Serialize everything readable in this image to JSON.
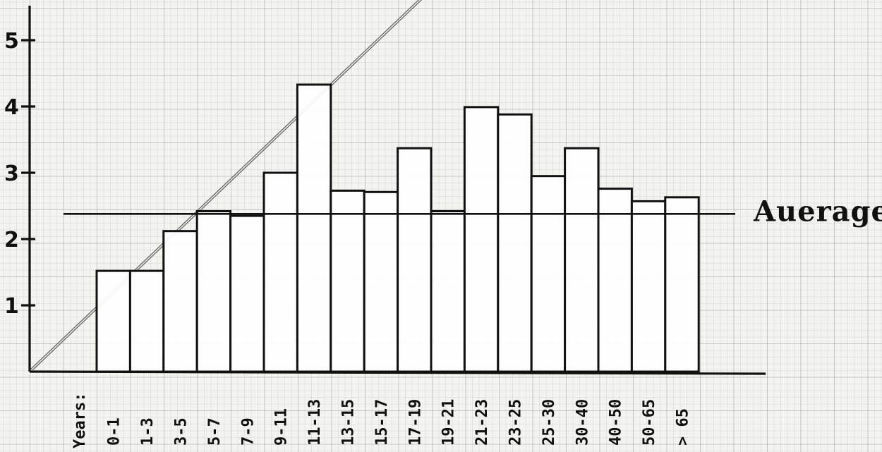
{
  "chart_data": {
    "type": "bar",
    "title": "",
    "xlabel": "Years:",
    "ylabel": "",
    "categories": [
      "0-1",
      "1-3",
      "3-5",
      "5-7",
      "7-9",
      "9-11",
      "11-13",
      "13-15",
      "15-17",
      "17-19",
      "19-21",
      "21-23",
      "23-25",
      "25-30",
      "30-40",
      "40-50",
      "50-65",
      "> 65"
    ],
    "values": [
      1.52,
      1.52,
      2.12,
      2.42,
      2.35,
      3.0,
      4.33,
      2.73,
      2.71,
      3.37,
      2.42,
      3.99,
      3.88,
      2.95,
      3.37,
      2.76,
      2.57,
      2.63
    ],
    "average": {
      "label": "Auerage",
      "value": 2.38
    },
    "ylim": [
      0,
      5.4
    ],
    "yticks": [
      1,
      2,
      3,
      4,
      5
    ],
    "grid": true,
    "trend_line": {
      "from": {
        "category": "0-1",
        "y": 0
      },
      "to": {
        "category": "11-13",
        "y": 5.6
      }
    },
    "colors": {
      "bar_fill": "#ffffff",
      "bar_stroke": "#111111",
      "paper": "#f3f3f0"
    }
  }
}
